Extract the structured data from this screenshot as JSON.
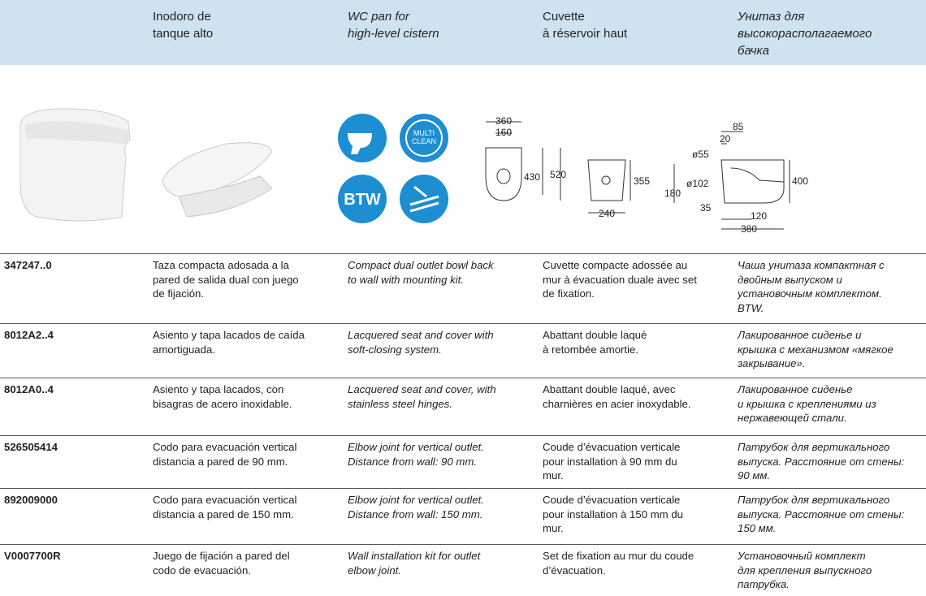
{
  "header": {
    "columns": [
      [
        "Inodoro de",
        "tanque alto"
      ],
      [
        "WC pan for",
        "high-level cistern"
      ],
      [
        "Cuvette",
        "à réservoir haut"
      ],
      [
        "Унитаз для",
        "высокорасполагаемого",
        "бачка"
      ]
    ]
  },
  "icons": {
    "multi_clean": [
      "MULTI",
      "CLEAN"
    ],
    "btw": "BTW"
  },
  "drawings": {
    "top": [
      "360",
      "160",
      "430",
      "520"
    ],
    "back": [
      "355",
      "240"
    ],
    "side": [
      "85",
      "20",
      "ø55",
      "ø102",
      "180",
      "35",
      "120",
      "380",
      "400"
    ]
  },
  "table": {
    "rows": [
      [
        [
          "347247..0"
        ],
        [
          "Taza compacta adosada a la",
          "pared de salida dual con juego",
          "de fijación."
        ],
        [
          "Compact dual outlet bowl back",
          "to wall with mounting kit."
        ],
        [
          "Cuvette compacte adossée au",
          "mur à évacuation duale avec set",
          "de fixation."
        ],
        [
          "Чаша унитаза компактная с",
          "двойным выпуском и",
          "установочным комплектом.",
          "BTW."
        ]
      ],
      [
        [
          "8012A2..4"
        ],
        [
          "Asiento y tapa lacados de caída",
          "amortiguada."
        ],
        [
          "Lacquered seat and cover with",
          "soft-closing system."
        ],
        [
          "Abattant double laqué",
          "à retombée amortie."
        ],
        [
          "Лакированное сиденье и",
          "крышка с механизмом «мягкое",
          "закрывание»."
        ]
      ],
      [
        [
          "8012A0..4"
        ],
        [
          "Asiento y tapa lacados, con",
          "bisagras de acero inoxidable."
        ],
        [
          "Lacquered seat and cover, with",
          "stainless steel hinges."
        ],
        [
          "Abattant double laqué, avec",
          "charnières en acier inoxydable."
        ],
        [
          "Лакированное сиденье",
          "и крышка с креплениями из",
          "нержавеющей стали."
        ]
      ],
      [
        [
          "526505414"
        ],
        [
          "Codo para evacuación vertical",
          "distancia a pared de 90 mm."
        ],
        [
          "Elbow joint for vertical outlet.",
          "Distance from wall: 90 mm."
        ],
        [
          "Coude d’évacuation verticale",
          "pour installation à 90 mm du",
          "mur."
        ],
        [
          "Патрубок для вертикального",
          "выпуска. Расстояние от стены:",
          "90 мм."
        ]
      ],
      [
        [
          "892009000"
        ],
        [
          "Codo para evacuación vertical",
          "distancia a pared de 150 mm."
        ],
        [
          "Elbow joint for vertical outlet.",
          "Distance from wall: 150 mm."
        ],
        [
          "Coude d’évacuation verticale",
          "pour installation à 150 mm du",
          "mur."
        ],
        [
          "Патрубок для вертикального",
          "выпуска. Расстояние от стены:",
          "150 мм."
        ]
      ],
      [
        [
          "V0007700R"
        ],
        [
          "Juego de fijación a pared del",
          "codo de evacuación."
        ],
        [
          "Wall installation kit for outlet",
          "elbow joint."
        ],
        [
          "Set de fixation au mur du coude",
          "d’évacuation."
        ],
        [
          "Установочный комплект",
          "для крепления выпускного",
          "патрубка."
        ]
      ]
    ]
  }
}
